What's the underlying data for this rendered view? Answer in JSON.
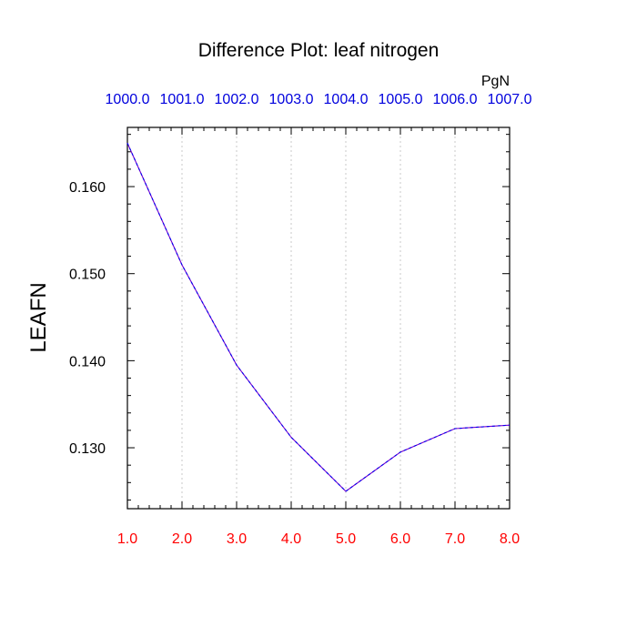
{
  "chart_data": {
    "type": "line",
    "title": "Difference Plot: leaf nitrogen",
    "ylabel": "LEAFN",
    "units_label": "PgN",
    "x": [
      1.0,
      2.0,
      3.0,
      4.0,
      5.0,
      6.0,
      7.0,
      8.0
    ],
    "x_tick_labels": [
      "1.0",
      "2.0",
      "3.0",
      "4.0",
      "5.0",
      "6.0",
      "7.0",
      "8.0"
    ],
    "top_tick_labels": [
      "1000.0",
      "1001.0",
      "1002.0",
      "1003.0",
      "1004.0",
      "1005.0",
      "1006.0",
      "1007.0"
    ],
    "y_ticks": [
      0.13,
      0.14,
      0.15,
      0.16
    ],
    "y_tick_labels": [
      "0.130",
      "0.140",
      "0.150",
      "0.160"
    ],
    "xlim": [
      1.0,
      8.0
    ],
    "ylim": [
      0.123,
      0.1668
    ],
    "grid": "vertical dotted",
    "series": [
      {
        "values": [
          0.165,
          0.151,
          0.1395,
          0.1312,
          0.125,
          0.1295,
          0.1322,
          0.1326
        ]
      }
    ],
    "colors": {
      "series_line": "#7700cc",
      "series_dash": "#0000ee",
      "bottom_ticks": "#ff0000",
      "top_ticks": "#0000dd",
      "axes": "#000000",
      "grid": "#c8c8c8"
    }
  }
}
